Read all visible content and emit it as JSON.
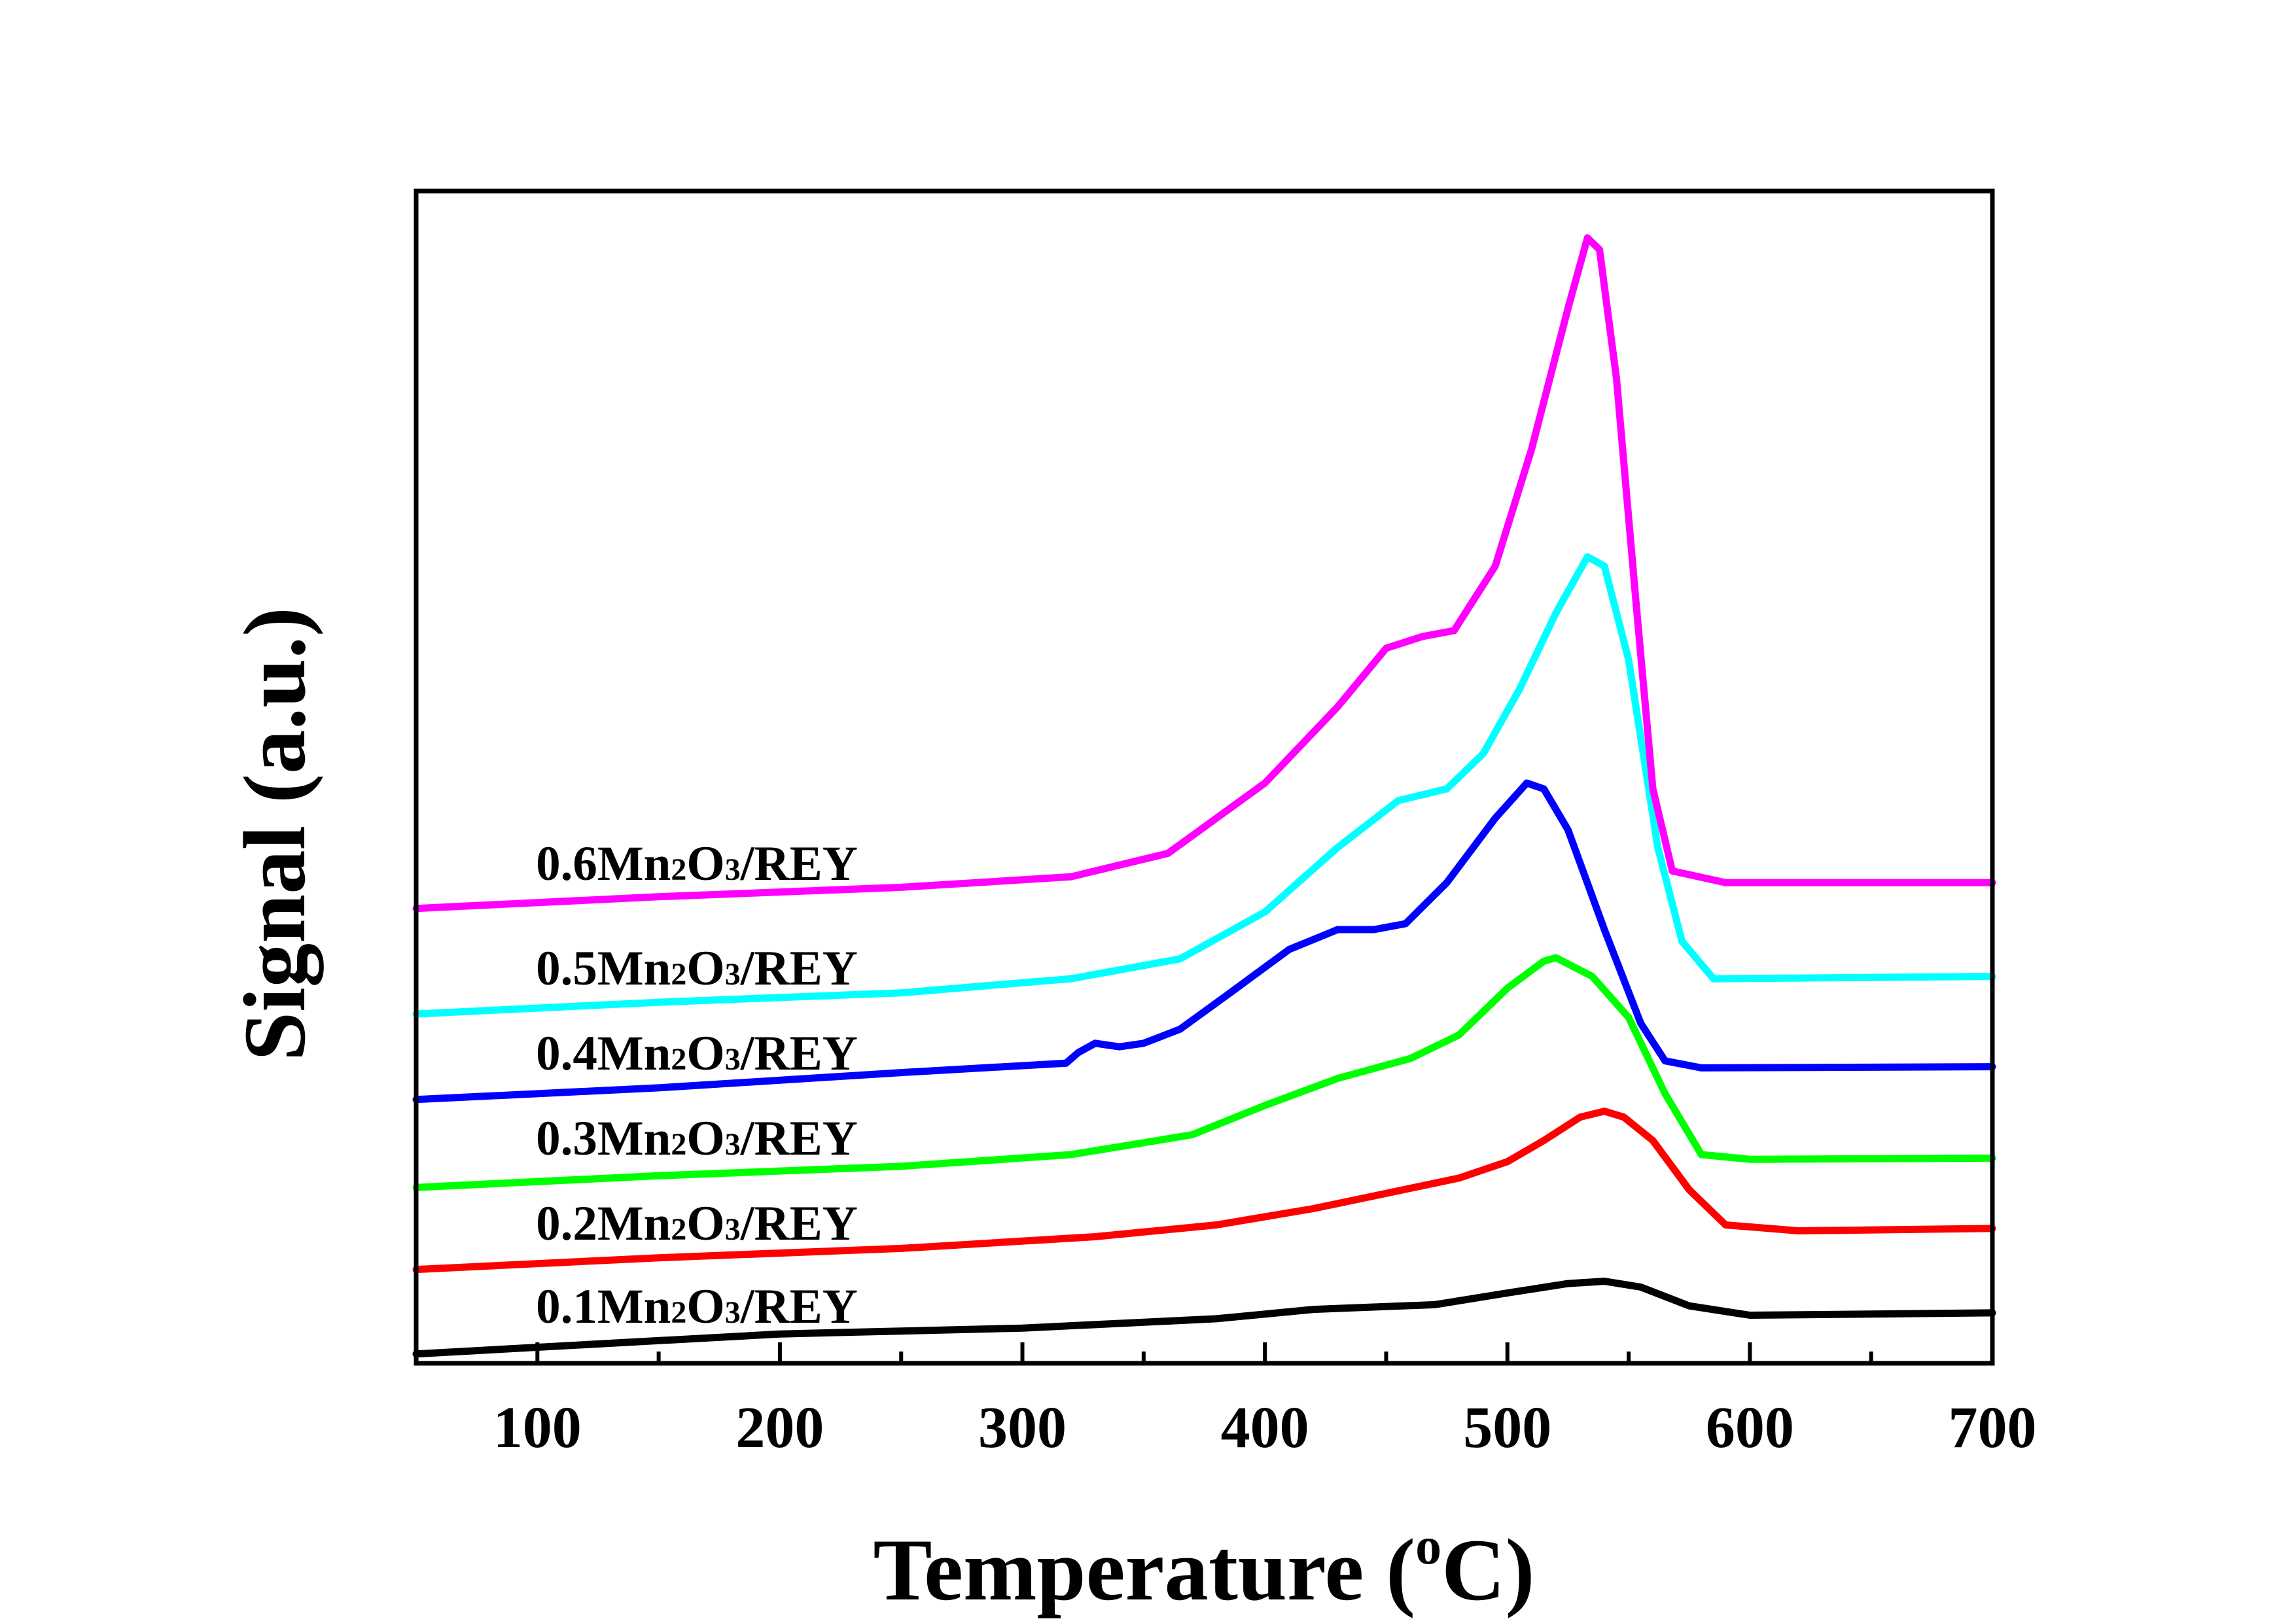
{
  "chart_data": {
    "type": "line",
    "xlabel": "Temperature (oC)",
    "xlabel_parts": {
      "main": "Temperature (",
      "sup": "o",
      "tail": "C)"
    },
    "ylabel": "Signal (a.u.)",
    "xlim": [
      50,
      700
    ],
    "ylim": [
      0,
      100
    ],
    "y_ticks_visible": false,
    "grid": false,
    "x_ticks": [
      100,
      200,
      300,
      400,
      500,
      600,
      700
    ],
    "x_ticklabels": [
      "100",
      "200",
      "300",
      "400",
      "500",
      "600",
      "700"
    ],
    "series": [
      {
        "name": "0.1Mn2O3/REY",
        "label_parts": {
          "a": "0.1Mn",
          "sub1": "2",
          "b": "O",
          "sub2": "3",
          "c": "/REY"
        },
        "color": "#000000",
        "points": [
          [
            50,
            0.8
          ],
          [
            200,
            2.5
          ],
          [
            300,
            3.0
          ],
          [
            380,
            3.8
          ],
          [
            420,
            4.6
          ],
          [
            470,
            5.0
          ],
          [
            500,
            6.0
          ],
          [
            525,
            6.8
          ],
          [
            540,
            7.0
          ],
          [
            555,
            6.5
          ],
          [
            575,
            4.9
          ],
          [
            600,
            4.1
          ],
          [
            650,
            4.2
          ],
          [
            700,
            4.3
          ]
        ]
      },
      {
        "name": "0.2Mn2O3/REY",
        "label_parts": {
          "a": "0.2Mn",
          "sub1": "2",
          "b": "O",
          "sub2": "3",
          "c": "/REY"
        },
        "color": "#ff0000",
        "points": [
          [
            50,
            8.0
          ],
          [
            150,
            9.0
          ],
          [
            250,
            9.8
          ],
          [
            330,
            10.8
          ],
          [
            380,
            11.8
          ],
          [
            420,
            13.2
          ],
          [
            450,
            14.5
          ],
          [
            480,
            15.8
          ],
          [
            500,
            17.2
          ],
          [
            515,
            19.0
          ],
          [
            530,
            21.0
          ],
          [
            540,
            21.5
          ],
          [
            548,
            21.0
          ],
          [
            560,
            19.0
          ],
          [
            575,
            14.8
          ],
          [
            590,
            11.8
          ],
          [
            620,
            11.3
          ],
          [
            700,
            11.5
          ]
        ]
      },
      {
        "name": "0.3Mn2O3/REY",
        "label_parts": {
          "a": "0.3Mn",
          "sub1": "2",
          "b": "O",
          "sub2": "3",
          "c": "/REY"
        },
        "color": "#00ff00",
        "points": [
          [
            50,
            15.0
          ],
          [
            150,
            16.0
          ],
          [
            250,
            16.8
          ],
          [
            320,
            17.8
          ],
          [
            370,
            19.5
          ],
          [
            400,
            22.0
          ],
          [
            430,
            24.3
          ],
          [
            460,
            26.0
          ],
          [
            480,
            28.0
          ],
          [
            500,
            32.0
          ],
          [
            515,
            34.3
          ],
          [
            520,
            34.6
          ],
          [
            535,
            33.0
          ],
          [
            550,
            29.5
          ],
          [
            565,
            23.0
          ],
          [
            580,
            17.8
          ],
          [
            600,
            17.4
          ],
          [
            700,
            17.5
          ]
        ]
      },
      {
        "name": "0.4Mn2O3/REY",
        "label_parts": {
          "a": "0.4Mn",
          "sub1": "2",
          "b": "O",
          "sub2": "3",
          "c": "/REY"
        },
        "color": "#0000ff",
        "points": [
          [
            50,
            22.5
          ],
          [
            150,
            23.5
          ],
          [
            250,
            24.8
          ],
          [
            318,
            25.6
          ],
          [
            323,
            26.5
          ],
          [
            330,
            27.3
          ],
          [
            340,
            27.0
          ],
          [
            350,
            27.3
          ],
          [
            365,
            28.5
          ],
          [
            385,
            31.5
          ],
          [
            410,
            35.3
          ],
          [
            430,
            37.0
          ],
          [
            445,
            37.0
          ],
          [
            458,
            37.5
          ],
          [
            475,
            41.0
          ],
          [
            495,
            46.5
          ],
          [
            508,
            49.5
          ],
          [
            515,
            49.0
          ],
          [
            525,
            45.5
          ],
          [
            540,
            37.0
          ],
          [
            555,
            29.0
          ],
          [
            565,
            25.8
          ],
          [
            580,
            25.2
          ],
          [
            700,
            25.3
          ]
        ]
      },
      {
        "name": "0.5Mn2O3/REY",
        "label_parts": {
          "a": "0.5Mn",
          "sub1": "2",
          "b": "O",
          "sub2": "3",
          "c": "/REY"
        },
        "color": "#00ffff",
        "points": [
          [
            50,
            29.8
          ],
          [
            150,
            30.8
          ],
          [
            250,
            31.6
          ],
          [
            320,
            32.8
          ],
          [
            365,
            34.5
          ],
          [
            400,
            38.5
          ],
          [
            430,
            44.0
          ],
          [
            455,
            48.0
          ],
          [
            475,
            49.0
          ],
          [
            490,
            52.0
          ],
          [
            505,
            57.5
          ],
          [
            520,
            64.0
          ],
          [
            533,
            68.8
          ],
          [
            540,
            68.0
          ],
          [
            550,
            60.0
          ],
          [
            562,
            44.0
          ],
          [
            572,
            36.0
          ],
          [
            585,
            32.8
          ],
          [
            700,
            33.0
          ]
        ]
      },
      {
        "name": "0.6Mn2O3/REY",
        "label_parts": {
          "a": "0.6Mn",
          "sub1": "2",
          "b": "O",
          "sub2": "3",
          "c": "/REY"
        },
        "color": "#ff00ff",
        "points": [
          [
            50,
            38.8
          ],
          [
            150,
            39.8
          ],
          [
            250,
            40.6
          ],
          [
            320,
            41.5
          ],
          [
            360,
            43.5
          ],
          [
            400,
            49.5
          ],
          [
            430,
            56.0
          ],
          [
            450,
            61.0
          ],
          [
            465,
            62.0
          ],
          [
            478,
            62.5
          ],
          [
            495,
            68.0
          ],
          [
            510,
            78.0
          ],
          [
            525,
            90.0
          ],
          [
            533,
            96.0
          ],
          [
            538,
            95.0
          ],
          [
            545,
            84.0
          ],
          [
            553,
            65.0
          ],
          [
            560,
            49.0
          ],
          [
            568,
            42.0
          ],
          [
            590,
            41.0
          ],
          [
            700,
            41.0
          ]
        ]
      }
    ]
  }
}
